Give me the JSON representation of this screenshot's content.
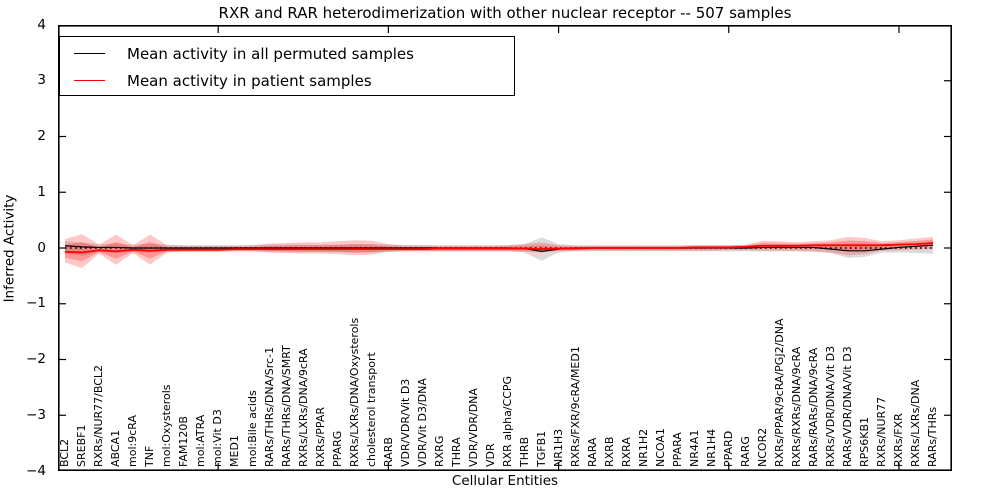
{
  "chart_data": {
    "type": "line",
    "title": "RXR and RAR heterodimerization with other nuclear receptor -- 507 samples",
    "xlabel": "Cellular Entities",
    "ylabel": "Inferred Activity",
    "ylim": [
      -4,
      4
    ],
    "yticks": [
      4,
      3,
      2,
      1,
      0,
      -1,
      -2,
      -3,
      -4
    ],
    "ytick_labels": [
      "4",
      "3",
      "2",
      "1",
      "0",
      "−1",
      "−2",
      "−3",
      "−4"
    ],
    "xticks_major_at_category_index": [
      10,
      20,
      30,
      40,
      50
    ],
    "grid": false,
    "legend_position": "upper left",
    "legend": [
      {
        "label": "Mean activity in all permuted samples",
        "color": "#000000"
      },
      {
        "label": "Mean activity in patient samples",
        "color": "#ff0000"
      }
    ],
    "zero_line": {
      "y": 0,
      "style": "dotted",
      "color": "#000000"
    },
    "categories": [
      "BCL2",
      "SREBF1",
      "RXRs/NUR77/BCL2",
      "ABCA1",
      "mol:9cRA",
      "TNF",
      "mol:Oxysterols",
      "FAM120B",
      "mol:ATRA",
      "mol:Vit D3",
      "MED1",
      "mol:Bile acids",
      "RARs/THRs/DNA/Src-1",
      "RARs/THRs/DNA/SMRT",
      "RXRs/LXRs/DNA/9cRA",
      "RXRs/PPAR",
      "PPARG",
      "RXRs/LXRs/DNA/Oxysterols",
      "cholesterol transport",
      "RARB",
      "VDR/VDR/Vit D3",
      "VDR/Vit D3/DNA",
      "RXRG",
      "THRA",
      "VDR/VDR/DNA",
      "VDR",
      "RXR alpha/CCPG",
      "THRB",
      "TGFB1",
      "NR1H3",
      "RXRs/FXR/9cRA/MED1",
      "RARA",
      "RXRB",
      "RXRA",
      "NR1H2",
      "NCOA1",
      "PPARA",
      "NR4A1",
      "NR1H4",
      "PPARD",
      "RARG",
      "NCOR2",
      "RXRs/PPAR/9cRA/PGJ2/DNA",
      "RXRs/RXRs/DNA/9cRA",
      "RARs/RARs/DNA/9cRA",
      "RXRs/VDR/DNA/Vit D3",
      "RARs/VDR/DNA/Vit D3",
      "RPS6KB1",
      "RXRs/NUR77",
      "RXRs/FXR",
      "RXRs/LXRs/DNA",
      "RARs/THRs"
    ],
    "series": [
      {
        "name": "Mean activity in all permuted samples",
        "kind": "line",
        "color": "#000000",
        "values": [
          0.04,
          0.02,
          0.01,
          0.01,
          0,
          0,
          0,
          0,
          0,
          0,
          0,
          0,
          0,
          0,
          0,
          0,
          0,
          0,
          0,
          0,
          0,
          0,
          0,
          0,
          0,
          0,
          0,
          -0.01,
          -0.06,
          -0.02,
          0,
          0,
          0,
          0,
          0,
          0,
          0,
          0,
          0,
          0,
          0,
          0.01,
          0.01,
          0.01,
          0.01,
          -0.02,
          -0.05,
          -0.05,
          -0.02,
          0.01,
          0.03,
          0.05
        ]
      },
      {
        "name": "Mean activity in patient samples",
        "kind": "line",
        "color": "#ff0000",
        "values": [
          -0.07,
          -0.08,
          -0.04,
          -0.06,
          -0.03,
          -0.05,
          -0.03,
          -0.03,
          -0.03,
          -0.03,
          -0.02,
          -0.02,
          -0.02,
          -0.02,
          -0.02,
          -0.02,
          -0.02,
          -0.02,
          -0.02,
          -0.02,
          -0.02,
          -0.02,
          -0.01,
          -0.01,
          -0.01,
          -0.01,
          -0.01,
          -0.01,
          -0.02,
          -0.01,
          -0.01,
          0,
          0,
          0,
          0,
          0,
          0,
          0.01,
          0.01,
          0.01,
          0.02,
          0.04,
          0.04,
          0.04,
          0.05,
          0.05,
          0.05,
          0.05,
          0.05,
          0.06,
          0.07,
          0.09
        ]
      },
      {
        "name": "permuted samples std band",
        "kind": "band",
        "color": "#000000",
        "opacity": 0.14,
        "upper": [
          0.12,
          0.1,
          0.06,
          0.08,
          0.06,
          0.07,
          0.06,
          0.05,
          0.05,
          0.05,
          0.05,
          0.05,
          0.06,
          0.06,
          0.06,
          0.06,
          0.06,
          0.07,
          0.07,
          0.06,
          0.05,
          0.05,
          0.05,
          0.05,
          0.05,
          0.05,
          0.05,
          0.07,
          0.19,
          0.07,
          0.05,
          0.05,
          0.05,
          0.05,
          0.05,
          0.05,
          0.05,
          0.05,
          0.05,
          0.05,
          0.05,
          0.06,
          0.06,
          0.06,
          0.06,
          0.07,
          0.08,
          0.08,
          0.06,
          0.06,
          0.07,
          0.08
        ],
        "lower": [
          -0.1,
          -0.14,
          -0.07,
          -0.09,
          -0.07,
          -0.08,
          -0.07,
          -0.06,
          -0.06,
          -0.06,
          -0.06,
          -0.06,
          -0.07,
          -0.07,
          -0.07,
          -0.07,
          -0.07,
          -0.08,
          -0.08,
          -0.07,
          -0.06,
          -0.06,
          -0.06,
          -0.06,
          -0.06,
          -0.06,
          -0.06,
          -0.08,
          -0.23,
          -0.08,
          -0.06,
          -0.06,
          -0.06,
          -0.06,
          -0.06,
          -0.06,
          -0.06,
          -0.06,
          -0.06,
          -0.06,
          -0.06,
          -0.06,
          -0.06,
          -0.06,
          -0.07,
          -0.09,
          -0.18,
          -0.16,
          -0.08,
          -0.08,
          -0.09,
          -0.1
        ]
      },
      {
        "name": "patient samples std band",
        "kind": "band",
        "color": "#ff0000",
        "opacity": 0.22,
        "upper": [
          0.16,
          0.25,
          0.06,
          0.24,
          0.05,
          0.24,
          0.05,
          0.04,
          0.04,
          0.04,
          0.04,
          0.05,
          0.08,
          0.09,
          0.1,
          0.1,
          0.12,
          0.14,
          0.13,
          0.07,
          0.05,
          0.05,
          0.04,
          0.04,
          0.04,
          0.04,
          0.05,
          0.07,
          0.1,
          0.05,
          0.04,
          0.04,
          0.04,
          0.04,
          0.04,
          0.04,
          0.04,
          0.05,
          0.05,
          0.05,
          0.06,
          0.13,
          0.12,
          0.1,
          0.12,
          0.14,
          0.2,
          0.18,
          0.12,
          0.14,
          0.17,
          0.2
        ],
        "lower": [
          -0.26,
          -0.36,
          -0.1,
          -0.3,
          -0.09,
          -0.3,
          -0.08,
          -0.07,
          -0.07,
          -0.07,
          -0.06,
          -0.06,
          -0.08,
          -0.09,
          -0.1,
          -0.1,
          -0.11,
          -0.13,
          -0.12,
          -0.07,
          -0.06,
          -0.06,
          -0.06,
          -0.06,
          -0.06,
          -0.06,
          -0.06,
          -0.07,
          -0.08,
          -0.06,
          -0.05,
          -0.05,
          -0.05,
          -0.05,
          -0.05,
          -0.05,
          -0.05,
          -0.05,
          -0.05,
          -0.04,
          -0.04,
          -0.05,
          -0.05,
          -0.05,
          -0.06,
          -0.08,
          -0.13,
          -0.11,
          -0.05,
          -0.04,
          -0.03,
          -0.02
        ]
      }
    ]
  }
}
